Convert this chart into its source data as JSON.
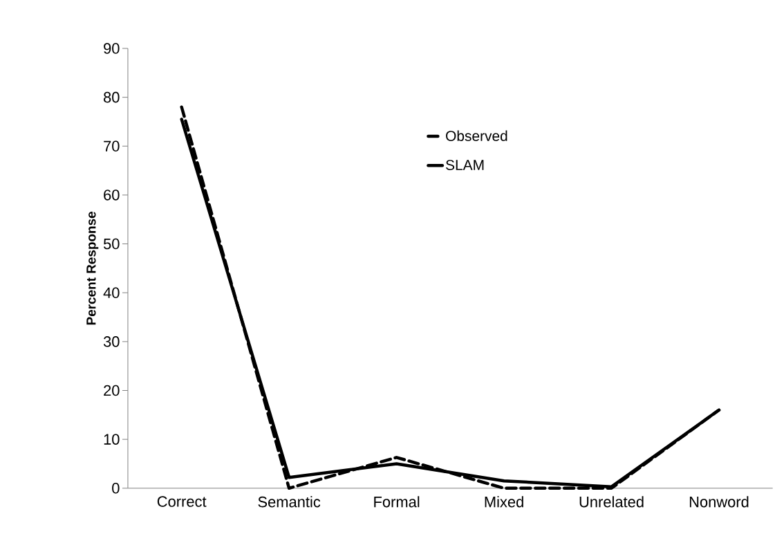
{
  "chart_data": {
    "type": "line",
    "ylabel": "Percent Response",
    "categories": [
      "Correct",
      "Semantic",
      "Formal",
      "Mixed",
      "Unrelated",
      "Nonword"
    ],
    "series": [
      {
        "name": "Observed",
        "color": "#000000",
        "line_style": "dashed",
        "values": [
          78,
          0,
          6.3,
          0,
          0,
          16
        ]
      },
      {
        "name": "SLAM",
        "color": "#000000",
        "line_style": "solid",
        "values": [
          75.5,
          2.2,
          5,
          1.5,
          0.3,
          16
        ]
      }
    ],
    "ylim": [
      0,
      90
    ],
    "yticks": [
      0,
      10,
      20,
      30,
      40,
      50,
      60,
      70,
      80,
      90
    ],
    "grid": false,
    "legend": "top right",
    "marker": "none"
  }
}
